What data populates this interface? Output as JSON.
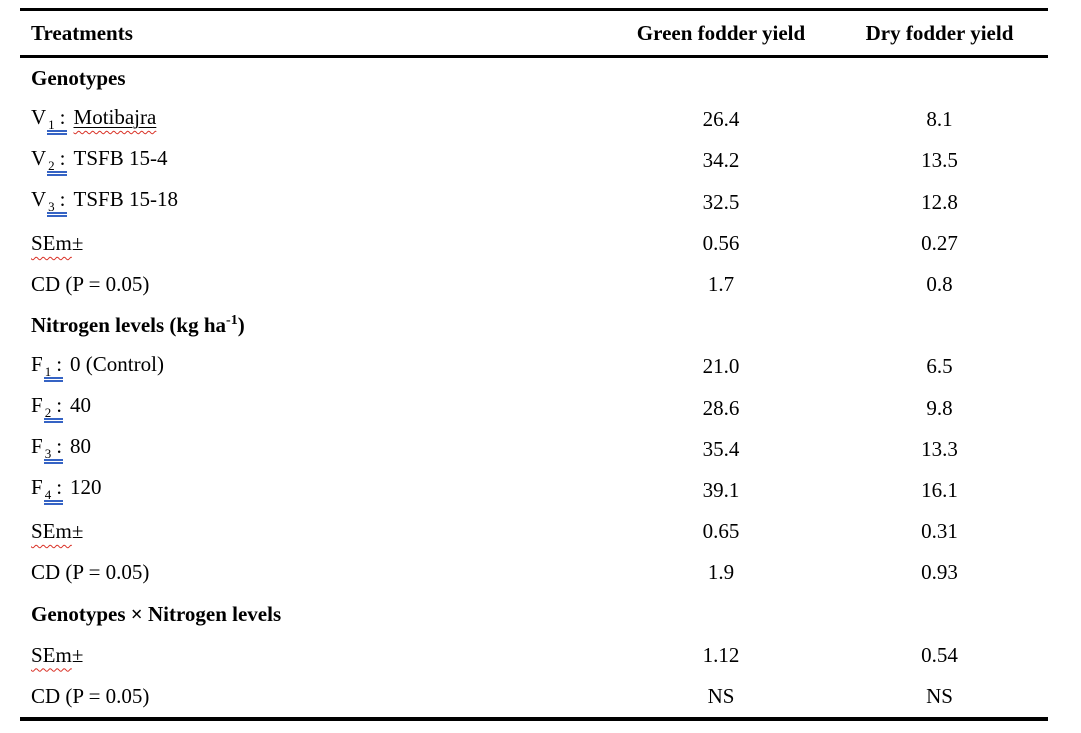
{
  "table": {
    "headers": [
      "Treatments",
      "Green fodder yield",
      "Dry fodder yield"
    ],
    "sections": [
      {
        "title": "Genotypes",
        "rows": [
          {
            "prefix": "V",
            "sub": "1",
            "colon": ":",
            "label": "Motibajra",
            "green": "26.4",
            "dry": "8.1"
          },
          {
            "prefix": "V",
            "sub": "2",
            "colon": ":",
            "label": "TSFB 15-4",
            "green": "34.2",
            "dry": "13.5"
          },
          {
            "prefix": "V",
            "sub": "3",
            "colon": ":",
            "label": "TSFB 15-18",
            "green": "32.5",
            "dry": "12.8"
          },
          {
            "label": "SEm",
            "suffix": "±",
            "green": "0.56",
            "dry": "0.27"
          },
          {
            "label": "CD (P = 0.05)",
            "green": "1.7",
            "dry": "0.8"
          }
        ]
      },
      {
        "title_main": "Nitrogen levels (kg ha",
        "title_sup": "-1",
        "title_close": ")",
        "rows": [
          {
            "prefix": "F",
            "sub": "1",
            "colon": ":",
            "label": "0 (Control)",
            "green": "21.0",
            "dry": "6.5"
          },
          {
            "prefix": "F",
            "sub": "2",
            "colon": ":",
            "label": "40",
            "green": "28.6",
            "dry": "9.8"
          },
          {
            "prefix": "F",
            "sub": "3",
            "colon": ":",
            "label": "80",
            "green": "35.4",
            "dry": "13.3"
          },
          {
            "prefix": "F",
            "sub": "4",
            "colon": ":",
            "label": "120",
            "green": "39.1",
            "dry": "16.1"
          },
          {
            "label": "SEm",
            "suffix": "±",
            "green": "0.65",
            "dry": "0.31"
          },
          {
            "label": "CD (P = 0.05)",
            "green": "1.9",
            "dry": "0.93"
          }
        ]
      },
      {
        "title": "Genotypes × Nitrogen levels",
        "rows": [
          {
            "label": "SEm",
            "suffix": "±",
            "green": "1.12",
            "dry": "0.54"
          },
          {
            "label": "CD (P = 0.05)",
            "green": "NS",
            "dry": "NS"
          }
        ]
      }
    ],
    "colors": {
      "rule": "#000000",
      "grammar_underline": "#3563c4",
      "spell_underline": "#d93025"
    }
  }
}
